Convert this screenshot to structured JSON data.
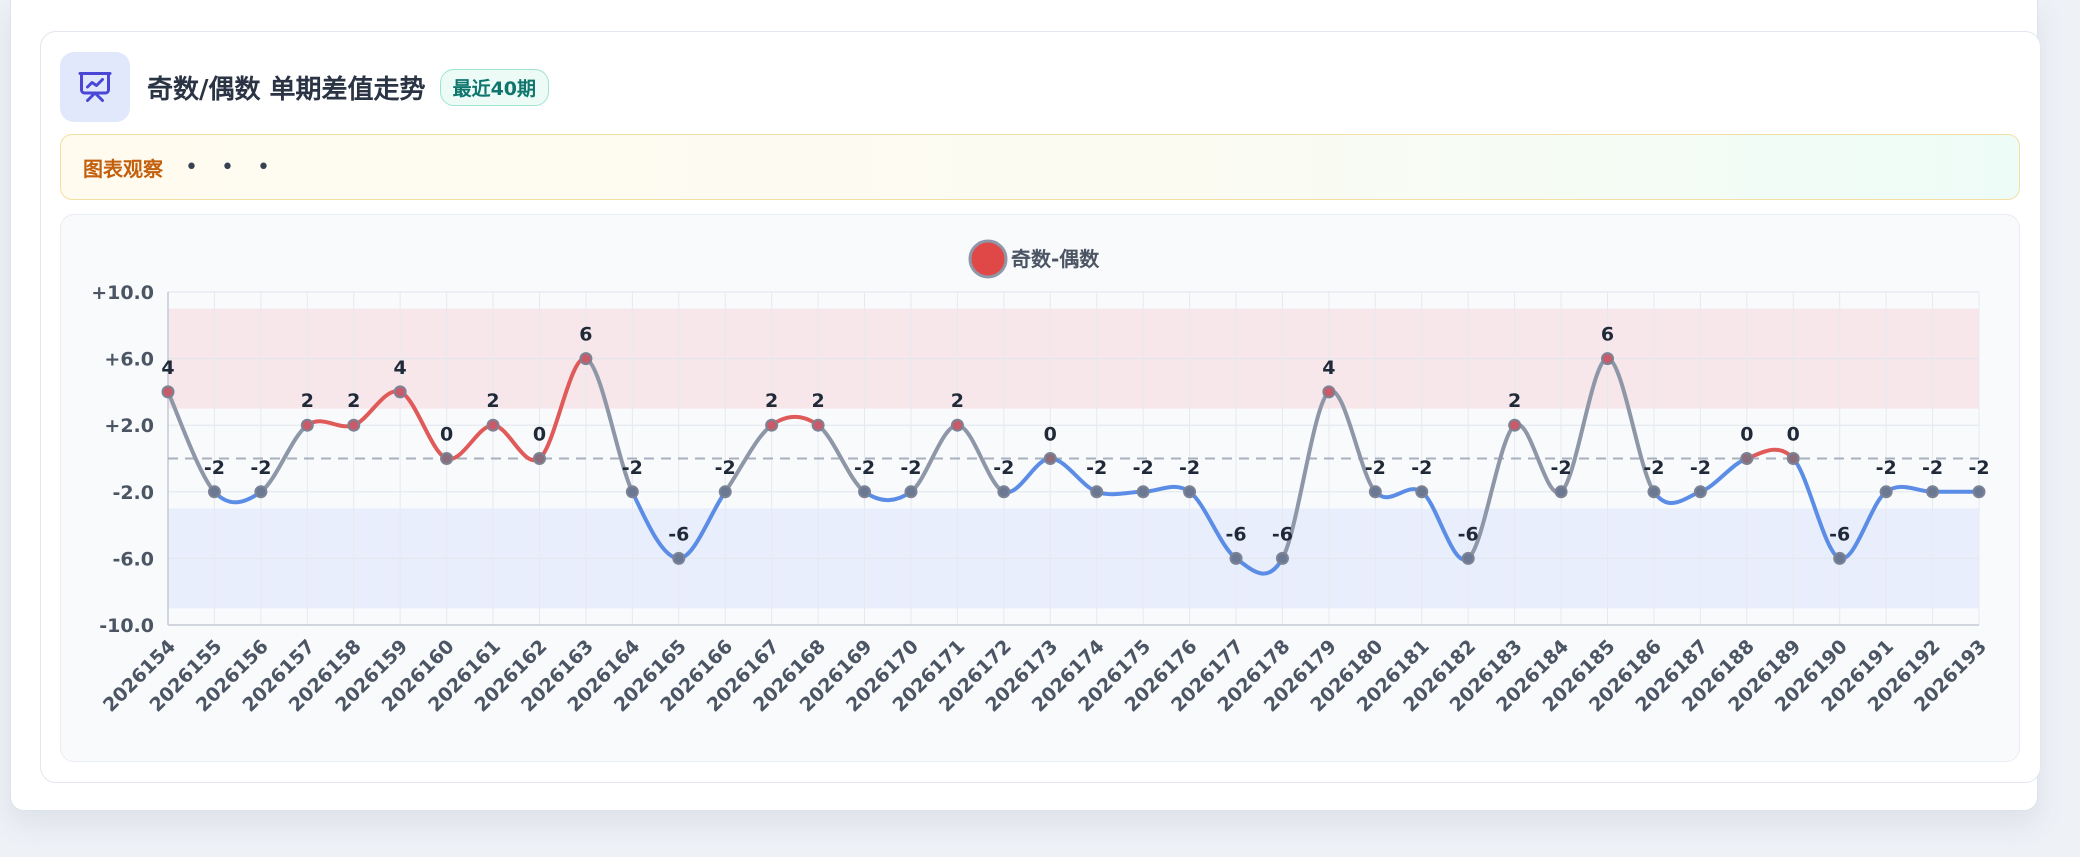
{
  "header": {
    "title": "奇数/偶数 单期差值走势",
    "badge": "最近40期",
    "icon": "chart-presentation-icon"
  },
  "observation": {
    "label": "图表观察",
    "dots": "• • •"
  },
  "chart_data": {
    "type": "line",
    "title": "",
    "xlabel": "",
    "ylabel": "",
    "legend": {
      "label": "奇数-偶数",
      "position": "top-center"
    },
    "x": [
      "2026154",
      "2026155",
      "2026156",
      "2026157",
      "2026158",
      "2026159",
      "2026160",
      "2026161",
      "2026162",
      "2026163",
      "2026164",
      "2026165",
      "2026166",
      "2026167",
      "2026168",
      "2026169",
      "2026170",
      "2026171",
      "2026172",
      "2026173",
      "2026174",
      "2026175",
      "2026176",
      "2026177",
      "2026178",
      "2026179",
      "2026180",
      "2026181",
      "2026182",
      "2026183",
      "2026184",
      "2026185",
      "2026186",
      "2026187",
      "2026188",
      "2026189",
      "2026190",
      "2026191",
      "2026192",
      "2026193"
    ],
    "series": [
      {
        "name": "奇数-偶数",
        "values": [
          4,
          -2,
          -2,
          2,
          2,
          4,
          0,
          2,
          0,
          6,
          -2,
          -6,
          -2,
          2,
          2,
          -2,
          -2,
          2,
          -2,
          0,
          -2,
          -2,
          -2,
          -6,
          -6,
          4,
          -2,
          -2,
          -6,
          2,
          -2,
          6,
          -2,
          -2,
          0,
          0,
          -6,
          -2,
          -2,
          -2
        ]
      }
    ],
    "ylim": [
      -10,
      10
    ],
    "yticks": [
      {
        "value": 10,
        "label": "+10.0"
      },
      {
        "value": 6,
        "label": "+6.0"
      },
      {
        "value": 2,
        "label": "+2.0"
      },
      {
        "value": -2,
        "label": "-2.0"
      },
      {
        "value": -6,
        "label": "-6.0"
      },
      {
        "value": -10,
        "label": "-10.0"
      }
    ],
    "reference_line": 0,
    "bands": [
      {
        "from": 3,
        "to": 9,
        "color": "#f7e6ea"
      },
      {
        "from": -9,
        "to": -3,
        "color": "#e8eefb"
      }
    ],
    "grid": true,
    "colors": {
      "positive": "#e05a5a",
      "negative": "#5b8de6",
      "neutral": "#8e97a8",
      "point": "#7b8394",
      "legend_fill": "#e04848",
      "legend_stroke": "#8e97a8"
    }
  }
}
